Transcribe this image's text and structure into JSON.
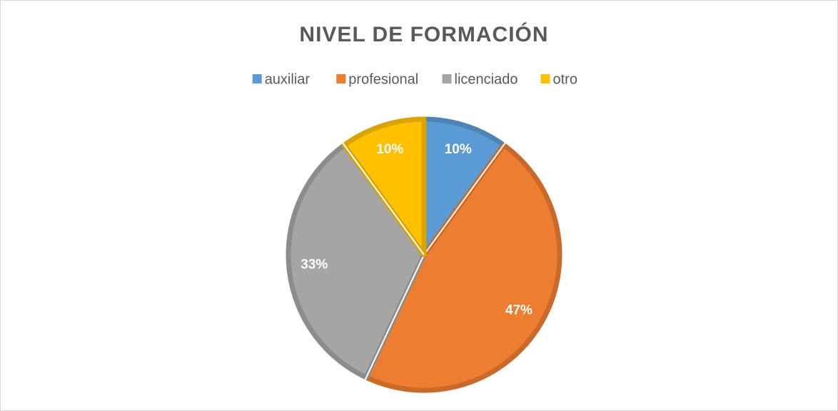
{
  "chart_data": {
    "type": "pie",
    "title": "NIVEL DE FORMACIÓN",
    "categories": [
      "auxiliar",
      "profesional",
      "licenciado",
      "otro"
    ],
    "values": [
      10,
      47,
      33,
      10
    ],
    "value_labels": [
      "10%",
      "47%",
      "33%",
      "10%"
    ],
    "colors": [
      "#5b9bd5",
      "#ed7d31",
      "#a5a5a5",
      "#ffc000"
    ],
    "legend": "top"
  }
}
